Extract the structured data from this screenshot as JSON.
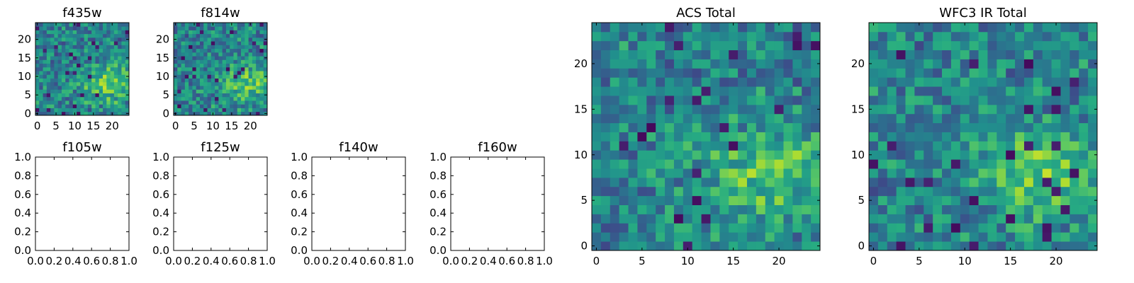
{
  "chart_data": [
    {
      "type": "heatmap",
      "title": "f435w",
      "xlim": [
        -0.5,
        24.5
      ],
      "ylim": [
        -0.5,
        24.5
      ],
      "xticks": [
        0,
        5,
        10,
        15,
        20
      ],
      "yticks": [
        0,
        5,
        10,
        15,
        20
      ],
      "xtick_labels": [
        "0",
        "5",
        "10",
        "15",
        "20"
      ],
      "ytick_labels": [
        "0",
        "5",
        "10",
        "15",
        "20"
      ],
      "grid": false,
      "colormap": "viridis",
      "grid_size": [
        25,
        25
      ],
      "seed": 11
    },
    {
      "type": "heatmap",
      "title": "f814w",
      "xlim": [
        -0.5,
        24.5
      ],
      "ylim": [
        -0.5,
        24.5
      ],
      "xticks": [
        0,
        5,
        10,
        15,
        20
      ],
      "yticks": [
        0,
        5,
        10,
        15,
        20
      ],
      "xtick_labels": [
        "0",
        "5",
        "10",
        "15",
        "20"
      ],
      "ytick_labels": [
        "0",
        "5",
        "10",
        "15",
        "20"
      ],
      "grid": false,
      "colormap": "viridis",
      "grid_size": [
        25,
        25
      ],
      "seed": 23
    },
    {
      "type": "heatmap",
      "title": "f105w",
      "empty": true,
      "xlim": [
        0,
        1
      ],
      "ylim": [
        0,
        1
      ],
      "xtick_labels": [
        "0.0",
        "0.2",
        "0.4",
        "0.6",
        "0.8",
        "1.0"
      ],
      "ytick_labels": [
        "0.0",
        "0.2",
        "0.4",
        "0.6",
        "0.8",
        "1.0"
      ]
    },
    {
      "type": "heatmap",
      "title": "f125w",
      "empty": true,
      "xlim": [
        0,
        1
      ],
      "ylim": [
        0,
        1
      ],
      "xtick_labels": [
        "0.0",
        "0.2",
        "0.4",
        "0.6",
        "0.8",
        "1.0"
      ],
      "ytick_labels": [
        "0.0",
        "0.2",
        "0.4",
        "0.6",
        "0.8",
        "1.0"
      ]
    },
    {
      "type": "heatmap",
      "title": "f140w",
      "empty": true,
      "xlim": [
        0,
        1
      ],
      "ylim": [
        0,
        1
      ],
      "xtick_labels": [
        "0.0",
        "0.2",
        "0.4",
        "0.6",
        "0.8",
        "1.0"
      ],
      "ytick_labels": [
        "0.0",
        "0.2",
        "0.4",
        "0.6",
        "0.8",
        "1.0"
      ]
    },
    {
      "type": "heatmap",
      "title": "f160w",
      "empty": true,
      "xlim": [
        0,
        1
      ],
      "ylim": [
        0,
        1
      ],
      "xtick_labels": [
        "0.0",
        "0.2",
        "0.4",
        "0.6",
        "0.8",
        "1.0"
      ],
      "ytick_labels": [
        "0.0",
        "0.2",
        "0.4",
        "0.6",
        "0.8",
        "1.0"
      ]
    },
    {
      "type": "heatmap",
      "title": "ACS Total",
      "xlim": [
        -0.5,
        24.5
      ],
      "ylim": [
        -0.5,
        24.5
      ],
      "xticks": [
        0,
        5,
        10,
        15,
        20
      ],
      "yticks": [
        0,
        5,
        10,
        15,
        20
      ],
      "xtick_labels": [
        "0",
        "5",
        "10",
        "15",
        "20"
      ],
      "ytick_labels": [
        "0",
        "5",
        "10",
        "15",
        "20"
      ],
      "grid": false,
      "colormap": "viridis",
      "grid_size": [
        25,
        25
      ],
      "seed": 37
    },
    {
      "type": "heatmap",
      "title": "WFC3 IR Total",
      "xlim": [
        -0.5,
        24.5
      ],
      "ylim": [
        -0.5,
        24.5
      ],
      "xticks": [
        0,
        5,
        10,
        15,
        20
      ],
      "yticks": [
        0,
        5,
        10,
        15,
        20
      ],
      "xtick_labels": [
        "0",
        "5",
        "10",
        "15",
        "20"
      ],
      "ytick_labels": [
        "0",
        "5",
        "10",
        "15",
        "20"
      ],
      "grid": false,
      "colormap": "viridis",
      "grid_size": [
        25,
        25
      ],
      "seed": 53
    }
  ]
}
